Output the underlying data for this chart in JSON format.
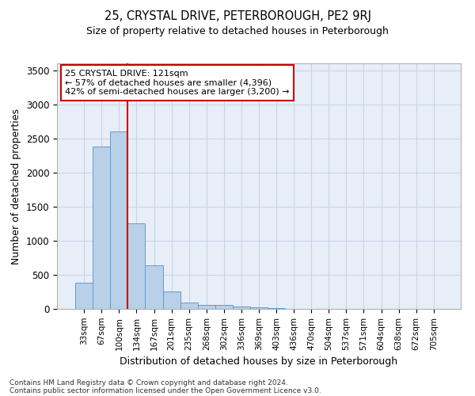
{
  "title": "25, CRYSTAL DRIVE, PETERBOROUGH, PE2 9RJ",
  "subtitle": "Size of property relative to detached houses in Peterborough",
  "xlabel": "Distribution of detached houses by size in Peterborough",
  "ylabel": "Number of detached properties",
  "footnote1": "Contains HM Land Registry data © Crown copyright and database right 2024.",
  "footnote2": "Contains public sector information licensed under the Open Government Licence v3.0.",
  "bar_labels": [
    "33sqm",
    "67sqm",
    "100sqm",
    "134sqm",
    "167sqm",
    "201sqm",
    "235sqm",
    "268sqm",
    "302sqm",
    "336sqm",
    "369sqm",
    "403sqm",
    "436sqm",
    "470sqm",
    "504sqm",
    "537sqm",
    "571sqm",
    "604sqm",
    "638sqm",
    "672sqm",
    "705sqm"
  ],
  "bar_values": [
    380,
    2380,
    2600,
    1250,
    640,
    255,
    95,
    60,
    55,
    40,
    25,
    15,
    5,
    3,
    2,
    1,
    1,
    0,
    0,
    0,
    0
  ],
  "bar_color": "#b8d0e8",
  "bar_edge_color": "#6699cc",
  "grid_color": "#c8d4e4",
  "bg_color": "#e8eef8",
  "vline_bin_index": 3,
  "vline_color": "#cc0000",
  "annotation_line1": "25 CRYSTAL DRIVE: 121sqm",
  "annotation_line2": "← 57% of detached houses are smaller (4,396)",
  "annotation_line3": "42% of semi-detached houses are larger (3,200) →",
  "annotation_box_color": "#cc0000",
  "ylim": [
    0,
    3600
  ],
  "yticks": [
    0,
    500,
    1000,
    1500,
    2000,
    2500,
    3000,
    3500
  ]
}
